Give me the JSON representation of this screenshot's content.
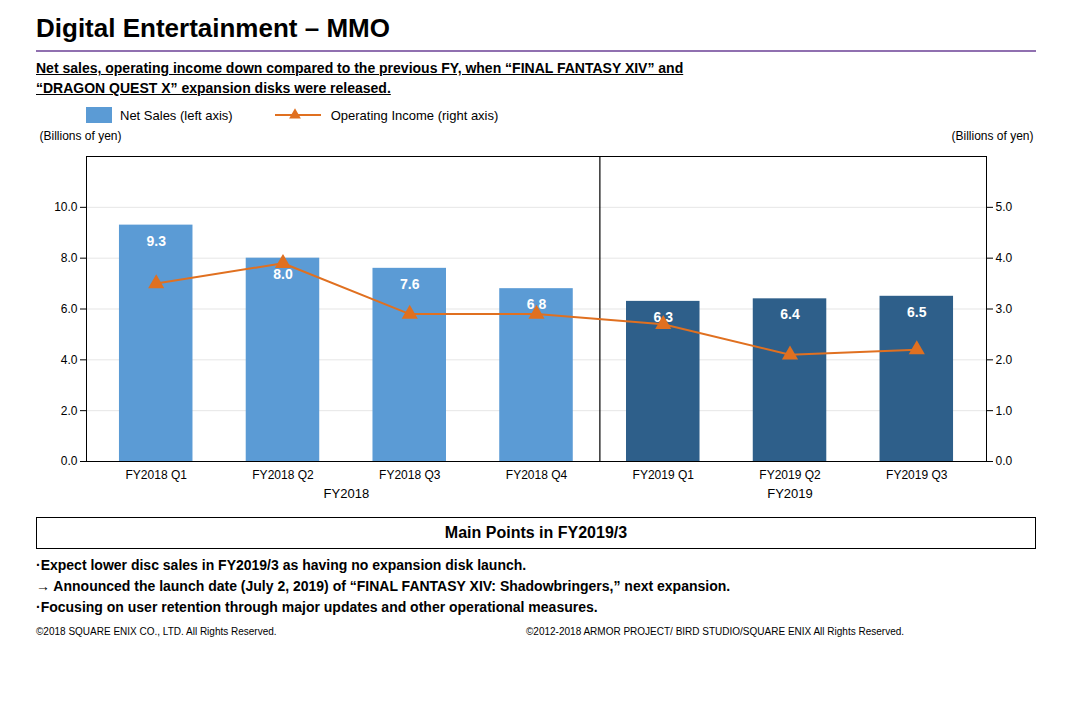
{
  "chart_data": {
    "type": "bar",
    "title": "Digital Entertainment – MMO",
    "subtitle": [
      "Net sales, operating income down compared to the previous FY, when “FINAL FANTASY XIV” and",
      "“DRAGON QUEST X” expansion disks were released."
    ],
    "categories": [
      "FY2018 Q1",
      "FY2018 Q2",
      "FY2018 Q3",
      "FY2018 Q4",
      "FY2019 Q1",
      "FY2019 Q2",
      "FY2019 Q3"
    ],
    "series": [
      {
        "name": "Net Sales (left axis)",
        "type": "bar",
        "colors": [
          "#5b9bd5",
          "#5b9bd5",
          "#5b9bd5",
          "#5b9bd5",
          "#2e5f8a",
          "#2e5f8a",
          "#2e5f8a"
        ],
        "values": [
          9.3,
          8.0,
          7.6,
          6.8,
          6.3,
          6.4,
          6.5
        ],
        "data_labels": true,
        "value_labels": [
          "9.3",
          "8.0",
          "7.6",
          "6.8",
          "6.3",
          "6.4",
          "6.5"
        ]
      },
      {
        "name": "Operating Income (right axis)",
        "type": "line",
        "axis": "y2",
        "color": "#e07020",
        "marker": "triangle",
        "values": [
          3.5,
          3.9,
          2.9,
          2.9,
          2.7,
          2.1,
          2.2
        ]
      }
    ],
    "ylabel": "(Billions of yen)",
    "y2label": "(Billions of yen)",
    "ylim": [
      0,
      12
    ],
    "yticks": [
      {
        "value": 0,
        "label": "0.0"
      },
      {
        "value": 2,
        "label": "2.0"
      },
      {
        "value": 4,
        "label": "4.0"
      },
      {
        "value": 6,
        "label": "6.0"
      },
      {
        "value": 8,
        "label": "8.0"
      },
      {
        "value": 10,
        "label": "10.0"
      }
    ],
    "y2lim": [
      0,
      6.0
    ],
    "y2ticks": [
      {
        "value": 0,
        "label": "0.0"
      },
      {
        "value": 1,
        "label": "1.0"
      },
      {
        "value": 2,
        "label": "2.0"
      },
      {
        "value": 3,
        "label": "3.0"
      },
      {
        "value": 4,
        "label": "4.0"
      },
      {
        "value": 5,
        "label": "5.0"
      }
    ],
    "grid": true,
    "legend": "top",
    "annotations": [
      "FY2018",
      "FY2019"
    ],
    "notes_title": "Main Points in FY2019/3",
    "notes": [
      "·Expect lower disc sales in FY2019/3 as having no expansion disk launch.",
      "→ Announced the launch date (July 2, 2019) of “FINAL FANTASY XIV: Shadowbringers,” next expansion.",
      "·Focusing on user retention through major updates and other operational measures."
    ],
    "caption": [
      "©2018 SQUARE ENIX CO., LTD. All Rights Reserved.",
      "©2012-2018 ARMOR PROJECT/ BIRD STUDIO/SQUARE ENIX All Rights Reserved."
    ]
  }
}
